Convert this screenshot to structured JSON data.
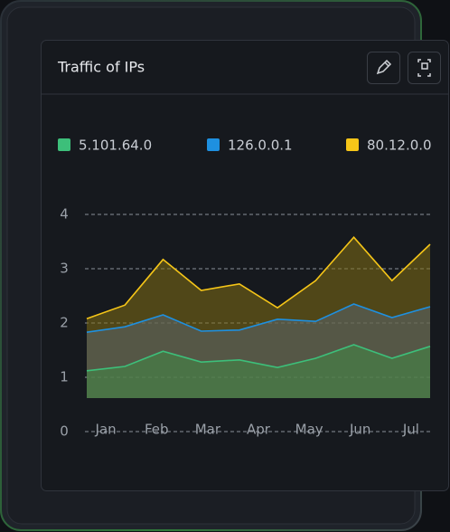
{
  "chart_data": {
    "type": "area",
    "title": "Traffic of IPs",
    "x": [
      0,
      1,
      2,
      3,
      4,
      5,
      6,
      7,
      8,
      9
    ],
    "xlim": [
      0,
      9
    ],
    "xticks": [
      {
        "value": 0.5,
        "label": "Jan"
      },
      {
        "value": 1.83,
        "label": "Feb"
      },
      {
        "value": 3.17,
        "label": "Mar"
      },
      {
        "value": 4.5,
        "label": "Apr"
      },
      {
        "value": 5.83,
        "label": "May"
      },
      {
        "value": 7.17,
        "label": "Jun"
      },
      {
        "value": 8.5,
        "label": "Jul"
      }
    ],
    "ylim": [
      0,
      4
    ],
    "yticks": [
      0,
      1,
      2,
      3,
      4
    ],
    "grid": true,
    "series": [
      {
        "name": "5.101.64.0",
        "color": "#3dbf7a",
        "values": [
          1.12,
          1.2,
          1.48,
          1.28,
          1.32,
          1.18,
          1.35,
          1.6,
          1.35,
          1.57
        ]
      },
      {
        "name": "126.0.0.1",
        "color": "#1e90e0",
        "values": [
          1.83,
          1.93,
          2.15,
          1.85,
          1.87,
          2.07,
          2.03,
          2.35,
          2.1,
          2.3
        ]
      },
      {
        "name": "80.12.0.0",
        "color": "#f5c518",
        "values": [
          2.08,
          2.33,
          3.17,
          2.6,
          2.72,
          2.28,
          2.78,
          3.58,
          2.78,
          3.45
        ]
      }
    ]
  }
}
